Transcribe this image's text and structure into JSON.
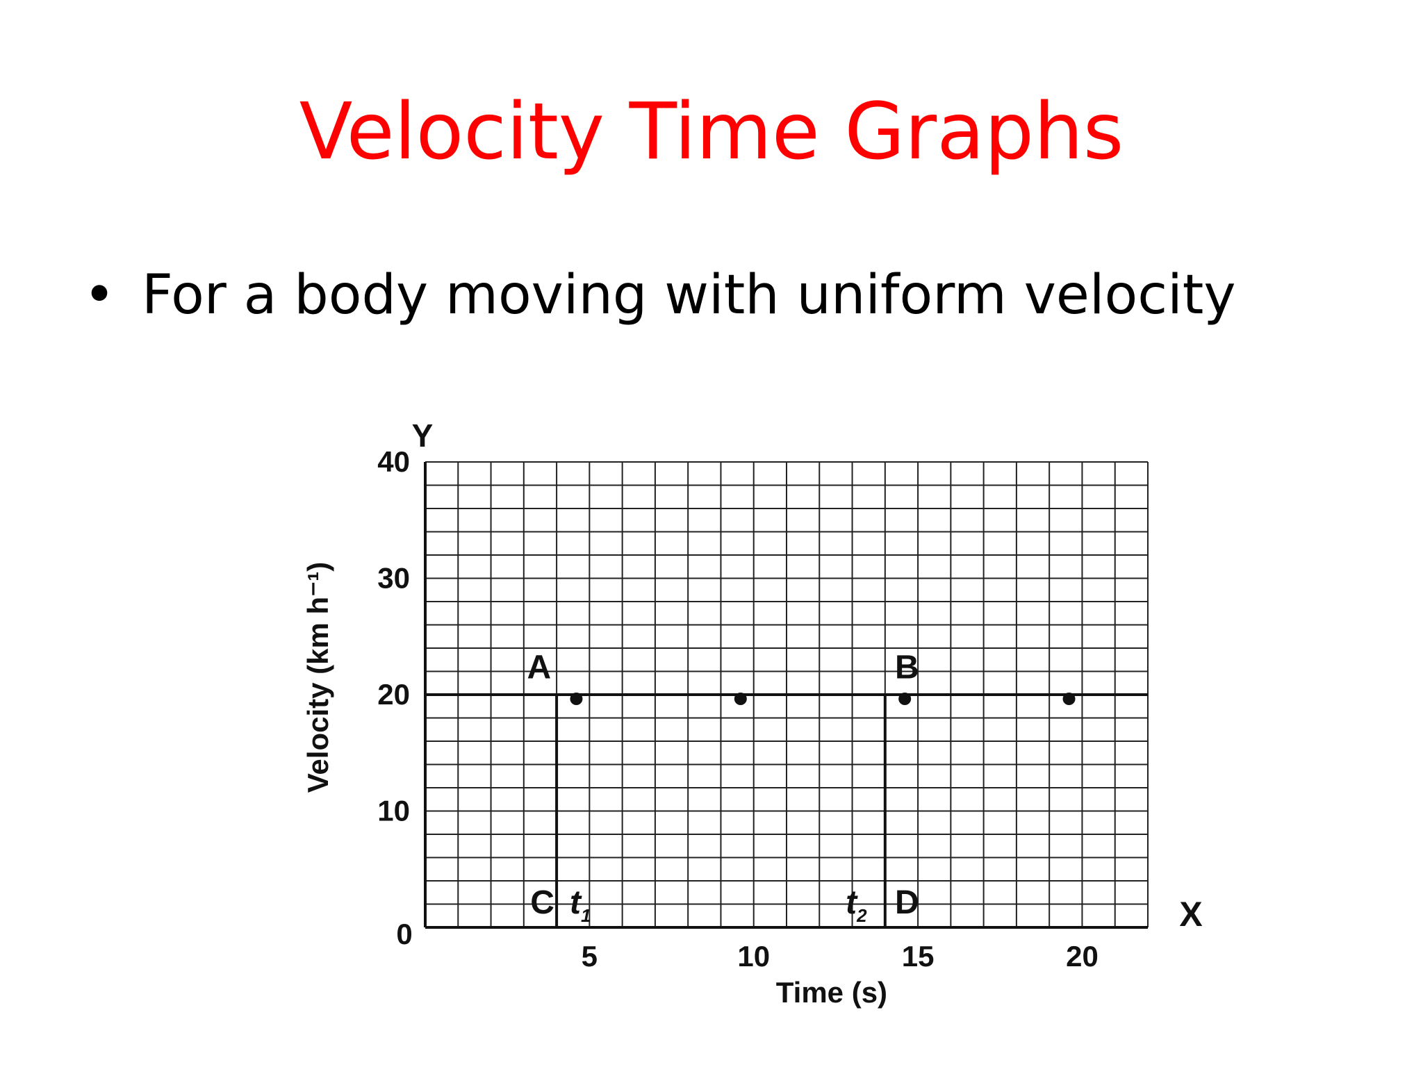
{
  "slide": {
    "title": "Velocity Time Graphs",
    "bullet_marker": "•",
    "bullet_text": "For a body moving with uniform velocity",
    "title_color": "#ff0000"
  },
  "chart_data": {
    "type": "line",
    "xlabel": "Time (s)",
    "ylabel": "Velocity (km h⁻¹)",
    "x_axis_name": "X",
    "y_axis_name": "Y",
    "origin_label": "0",
    "xlim": [
      0,
      22
    ],
    "ylim": [
      0,
      40
    ],
    "x_ticks": [
      5,
      10,
      15,
      20
    ],
    "y_ticks": [
      10,
      20,
      30,
      40
    ],
    "grid": true,
    "grid_minor_x_step": 1,
    "grid_minor_y_step": 2,
    "series": [
      {
        "x": [
          0,
          22
        ],
        "y": [
          20,
          20
        ]
      }
    ],
    "points": [
      {
        "x": 4.6,
        "y": 20
      },
      {
        "x": 9.6,
        "y": 20
      },
      {
        "x": 14.6,
        "y": 20
      },
      {
        "x": 19.6,
        "y": 20
      }
    ],
    "verticals": [
      {
        "x": 4,
        "y_from": 0,
        "y_to": 20
      },
      {
        "x": 14,
        "y_from": 0,
        "y_to": 20
      }
    ],
    "annotations": [
      {
        "text": "A",
        "x": 3.1,
        "y": 21.4
      },
      {
        "text": "B",
        "x": 14.3,
        "y": 21.4
      },
      {
        "text": "C",
        "x": 3.2,
        "y": 1.2
      },
      {
        "text": "D",
        "x": 14.3,
        "y": 1.2
      },
      {
        "text": "t",
        "sub": "1",
        "x": 4.4,
        "y": 1.2
      },
      {
        "text": "t",
        "sub": "2",
        "x": 12.8,
        "y": 1.2
      }
    ],
    "colors": {
      "line": "#111111",
      "grid": "#222222"
    }
  }
}
